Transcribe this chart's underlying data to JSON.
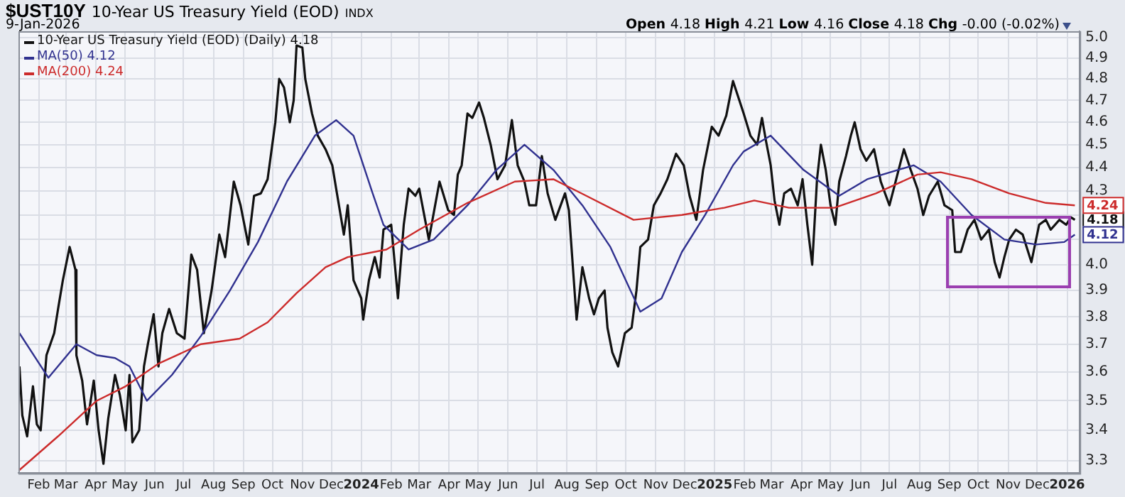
{
  "chart_data": {
    "type": "line",
    "title": "$UST10Y",
    "subtitle": "10-Year US Treasury Yield (EOD)",
    "annotations": [
      "INDX",
      "9-Jan-2026",
      "Open 4.18 High 4.21 Low 4.16 Close 4.18 Chg -0.00 (-0.02%)",
      {
        "text": "4.18",
        "x": "2026-01-09",
        "y": 4.18
      },
      {
        "text": "4.12",
        "x": "2026-01-09",
        "y": 4.12
      },
      {
        "text": "4.24",
        "x": "2026-01-09",
        "y": 4.24
      }
    ],
    "log": "y",
    "grid": true,
    "legend": "top left",
    "marker": "none",
    "xlim": [
      "2023-01-11",
      "2026-01-14"
    ],
    "ylim": [
      3.26,
      5.03
    ],
    "yticks": [
      3.3,
      3.4,
      3.5,
      3.6,
      3.7,
      3.8,
      3.9,
      {
        "value": 4.0,
        "label": "4.0"
      },
      {
        "value": 4.1,
        "label": null
      },
      {
        "value": 4.2,
        "label": null
      },
      4.3,
      4.4,
      4.5,
      4.6,
      4.7,
      4.8,
      4.9,
      {
        "value": 5.0,
        "label": "5.0"
      }
    ],
    "xticks": [
      {
        "value": "2023-02-01",
        "label": "Feb"
      },
      {
        "value": "2023-03-01",
        "label": "Mar"
      },
      {
        "value": "2023-04-01",
        "label": "Apr"
      },
      {
        "value": "2023-05-01",
        "label": "May"
      },
      {
        "value": "2023-06-01",
        "label": "Jun"
      },
      {
        "value": "2023-07-01",
        "label": "Jul"
      },
      {
        "value": "2023-08-01",
        "label": "Aug"
      },
      {
        "value": "2023-09-01",
        "label": "Sep"
      },
      {
        "value": "2023-10-01",
        "label": "Oct"
      },
      {
        "value": "2023-11-01",
        "label": "Nov"
      },
      {
        "value": "2023-12-01",
        "label": "Dec"
      },
      {
        "value": "2024-01-01",
        "label": "2024"
      },
      {
        "value": "2024-02-01",
        "label": "Feb"
      },
      {
        "value": "2024-03-01",
        "label": "Mar"
      },
      {
        "value": "2024-04-01",
        "label": "Apr"
      },
      {
        "value": "2024-05-01",
        "label": "May"
      },
      {
        "value": "2024-06-01",
        "label": "Jun"
      },
      {
        "value": "2024-07-01",
        "label": "Jul"
      },
      {
        "value": "2024-08-01",
        "label": "Aug"
      },
      {
        "value": "2024-09-01",
        "label": "Sep"
      },
      {
        "value": "2024-10-01",
        "label": "Oct"
      },
      {
        "value": "2024-11-01",
        "label": "Nov"
      },
      {
        "value": "2024-12-01",
        "label": "Dec"
      },
      {
        "value": "2025-01-01",
        "label": "2025"
      },
      {
        "value": "2025-02-01",
        "label": "Feb"
      },
      {
        "value": "2025-03-01",
        "label": "Mar"
      },
      {
        "value": "2025-04-01",
        "label": "Apr"
      },
      {
        "value": "2025-05-01",
        "label": "May"
      },
      {
        "value": "2025-06-01",
        "label": "Jun"
      },
      {
        "value": "2025-07-01",
        "label": "Jul"
      },
      {
        "value": "2025-08-01",
        "label": "Aug"
      },
      {
        "value": "2025-09-01",
        "label": "Sep"
      },
      {
        "value": "2025-10-01",
        "label": "Oct"
      },
      {
        "value": "2025-11-01",
        "label": "Nov"
      },
      {
        "value": "2025-12-01",
        "label": "Dec"
      },
      {
        "value": "2026-01-01",
        "label": "2026"
      }
    ],
    "series": [
      {
        "name": "10-Year US Treasury Yield (EOD) (Daily) 4.18",
        "color": "#111111",
        "x": [
          "2023-01-12",
          "2023-01-15",
          "2023-01-20",
          "2023-01-26",
          "2023-01-30",
          "2023-02-03",
          "2023-02-09",
          "2023-02-17",
          "2023-02-21",
          "2023-02-26",
          "2023-03-05",
          "2023-03-11",
          "2023-03-12",
          "2023-03-18",
          "2023-03-23",
          "2023-03-30",
          "2023-04-04",
          "2023-04-09",
          "2023-04-14",
          "2023-04-21",
          "2023-04-26",
          "2023-05-02",
          "2023-05-06",
          "2023-05-09",
          "2023-05-16",
          "2023-05-21",
          "2023-05-25",
          "2023-05-31",
          "2023-06-05",
          "2023-06-09",
          "2023-06-16",
          "2023-06-24",
          "2023-07-02",
          "2023-07-09",
          "2023-07-15",
          "2023-07-22",
          "2023-07-30",
          "2023-08-07",
          "2023-08-13",
          "2023-08-22",
          "2023-08-29",
          "2023-09-06",
          "2023-09-12",
          "2023-09-19",
          "2023-09-26",
          "2023-10-04",
          "2023-10-08",
          "2023-10-13",
          "2023-10-19",
          "2023-10-23",
          "2023-10-26",
          "2023-11-01",
          "2023-11-04",
          "2023-11-11",
          "2023-11-17",
          "2023-11-25",
          "2023-12-02",
          "2023-12-06",
          "2023-12-14",
          "2023-12-18",
          "2023-12-24",
          "2024-01-01",
          "2024-01-03",
          "2024-01-09",
          "2024-01-15",
          "2024-01-20",
          "2024-01-24",
          "2024-02-01",
          "2024-02-08",
          "2024-02-14",
          "2024-02-19",
          "2024-02-26",
          "2024-03-01",
          "2024-03-11",
          "2024-03-22",
          "2024-03-31",
          "2024-04-06",
          "2024-04-10",
          "2024-04-14",
          "2024-04-20",
          "2024-04-25",
          "2024-05-02",
          "2024-05-07",
          "2024-05-14",
          "2024-05-21",
          "2024-05-29",
          "2024-06-05",
          "2024-06-11",
          "2024-06-18",
          "2024-06-23",
          "2024-06-30",
          "2024-07-06",
          "2024-07-12",
          "2024-07-20",
          "2024-07-30",
          "2024-08-03",
          "2024-08-11",
          "2024-08-17",
          "2024-08-24",
          "2024-08-29",
          "2024-09-03",
          "2024-09-09",
          "2024-09-12",
          "2024-09-17",
          "2024-09-23",
          "2024-09-30",
          "2024-10-07",
          "2024-10-12",
          "2024-10-16",
          "2024-10-24",
          "2024-10-30",
          "2024-11-06",
          "2024-11-13",
          "2024-11-22",
          "2024-11-30",
          "2024-12-06",
          "2024-12-13",
          "2024-12-20",
          "2024-12-29",
          "2025-01-05",
          "2025-01-13",
          "2025-01-20",
          "2025-01-31",
          "2025-02-07",
          "2025-02-14",
          "2025-02-19",
          "2025-02-23",
          "2025-02-28",
          "2025-03-04",
          "2025-03-09",
          "2025-03-14",
          "2025-03-21",
          "2025-03-28",
          "2025-04-02",
          "2025-04-07",
          "2025-04-12",
          "2025-04-17",
          "2025-04-21",
          "2025-04-26",
          "2025-05-01",
          "2025-05-06",
          "2025-05-10",
          "2025-05-17",
          "2025-05-22",
          "2025-05-26",
          "2025-06-01",
          "2025-06-07",
          "2025-06-15",
          "2025-06-22",
          "2025-07-01",
          "2025-07-08",
          "2025-07-16",
          "2025-07-23",
          "2025-07-30",
          "2025-08-05",
          "2025-08-11",
          "2025-08-20",
          "2025-08-27",
          "2025-09-04",
          "2025-09-07",
          "2025-09-13",
          "2025-09-20",
          "2025-09-27",
          "2025-10-04",
          "2025-10-12",
          "2025-10-18",
          "2025-10-23",
          "2025-10-28",
          "2025-11-02",
          "2025-11-09",
          "2025-11-16",
          "2025-11-25",
          "2025-12-03",
          "2025-12-10",
          "2025-12-15",
          "2025-12-24",
          "2025-12-31",
          "2026-01-05",
          "2026-01-09"
        ],
        "values": [
          3.62,
          3.45,
          3.38,
          3.55,
          3.42,
          3.4,
          3.66,
          3.74,
          3.83,
          3.94,
          4.07,
          3.98,
          3.66,
          3.57,
          3.42,
          3.57,
          3.4,
          3.29,
          3.44,
          3.59,
          3.52,
          3.4,
          3.59,
          3.36,
          3.4,
          3.62,
          3.7,
          3.81,
          3.62,
          3.74,
          3.83,
          3.74,
          3.72,
          4.04,
          3.98,
          3.74,
          3.9,
          4.12,
          4.03,
          4.34,
          4.24,
          4.08,
          4.28,
          4.29,
          4.35,
          4.6,
          4.8,
          4.76,
          4.6,
          4.7,
          4.96,
          4.95,
          4.8,
          4.64,
          4.54,
          4.48,
          4.41,
          4.31,
          4.12,
          4.24,
          3.94,
          3.87,
          3.79,
          3.94,
          4.03,
          3.95,
          4.14,
          4.16,
          3.87,
          4.16,
          4.31,
          4.28,
          4.31,
          4.1,
          4.34,
          4.22,
          4.2,
          4.37,
          4.41,
          4.64,
          4.62,
          4.69,
          4.62,
          4.5,
          4.35,
          4.41,
          4.61,
          4.41,
          4.34,
          4.24,
          4.24,
          4.45,
          4.29,
          4.18,
          4.29,
          4.22,
          3.79,
          3.99,
          3.87,
          3.81,
          3.87,
          3.9,
          3.76,
          3.67,
          3.62,
          3.74,
          3.76,
          3.9,
          4.07,
          4.1,
          4.24,
          4.29,
          4.35,
          4.46,
          4.41,
          4.28,
          4.18,
          4.39,
          4.58,
          4.54,
          4.63,
          4.79,
          4.64,
          4.54,
          4.5,
          4.62,
          4.52,
          4.41,
          4.26,
          4.16,
          4.29,
          4.31,
          4.24,
          4.35,
          4.16,
          4.0,
          4.35,
          4.5,
          4.39,
          4.24,
          4.16,
          4.34,
          4.45,
          4.54,
          4.6,
          4.48,
          4.43,
          4.48,
          4.34,
          4.24,
          4.35,
          4.48,
          4.39,
          4.31,
          4.2,
          4.28,
          4.34,
          4.24,
          4.22,
          4.05,
          4.05,
          4.14,
          4.18,
          4.1,
          4.14,
          4.01,
          3.95,
          4.03,
          4.1,
          4.14,
          4.12,
          4.01,
          4.16,
          4.18,
          4.14,
          4.18,
          4.16,
          4.19,
          4.18
        ]
      },
      {
        "name": "MA(50) 4.12",
        "color": "#30318f",
        "x": [
          "2023-01-12",
          "2023-02-11",
          "2023-03-12",
          "2023-04-02",
          "2023-04-21",
          "2023-05-06",
          "2023-05-24",
          "2023-06-19",
          "2023-07-19",
          "2023-08-18",
          "2023-09-16",
          "2023-10-16",
          "2023-11-14",
          "2023-12-06",
          "2023-12-24",
          "2024-01-12",
          "2024-01-24",
          "2024-02-19",
          "2024-03-16",
          "2024-04-20",
          "2024-05-20",
          "2024-06-18",
          "2024-07-18",
          "2024-08-17",
          "2024-09-15",
          "2024-10-16",
          "2024-11-07",
          "2024-11-28",
          "2024-12-22",
          "2025-01-20",
          "2025-01-31",
          "2025-02-28",
          "2025-04-03",
          "2025-05-10",
          "2025-06-08",
          "2025-07-26",
          "2025-08-23",
          "2025-09-24",
          "2025-10-28",
          "2025-11-30",
          "2025-12-29",
          "2026-01-09"
        ],
        "values": [
          3.74,
          3.58,
          3.7,
          3.66,
          3.65,
          3.62,
          3.5,
          3.59,
          3.73,
          3.9,
          4.09,
          4.34,
          4.54,
          4.61,
          4.54,
          4.3,
          4.16,
          4.06,
          4.1,
          4.24,
          4.39,
          4.5,
          4.39,
          4.24,
          4.07,
          3.82,
          3.87,
          4.05,
          4.2,
          4.41,
          4.47,
          4.54,
          4.39,
          4.28,
          4.35,
          4.41,
          4.34,
          4.2,
          4.1,
          4.08,
          4.09,
          4.12
        ]
      },
      {
        "name": "MA(200) 4.24",
        "color": "#cc2b2b",
        "x": [
          "2023-01-12",
          "2023-02-21",
          "2023-04-02",
          "2023-05-02",
          "2023-06-05",
          "2023-07-19",
          "2023-08-28",
          "2023-09-26",
          "2023-10-26",
          "2023-11-25",
          "2023-12-18",
          "2024-01-27",
          "2024-03-01",
          "2024-04-20",
          "2024-06-08",
          "2024-07-18",
          "2024-08-21",
          "2024-10-09",
          "2024-11-28",
          "2025-01-11",
          "2025-02-11",
          "2025-03-19",
          "2025-05-05",
          "2025-06-17",
          "2025-07-30",
          "2025-08-23",
          "2025-09-24",
          "2025-11-02",
          "2025-12-10",
          "2026-01-09"
        ],
        "values": [
          3.27,
          3.38,
          3.5,
          3.55,
          3.63,
          3.7,
          3.72,
          3.78,
          3.89,
          3.99,
          4.03,
          4.06,
          4.14,
          4.25,
          4.34,
          4.35,
          4.28,
          4.18,
          4.2,
          4.23,
          4.26,
          4.23,
          4.23,
          4.29,
          4.37,
          4.38,
          4.35,
          4.29,
          4.25,
          4.24
        ]
      }
    ]
  }
}
